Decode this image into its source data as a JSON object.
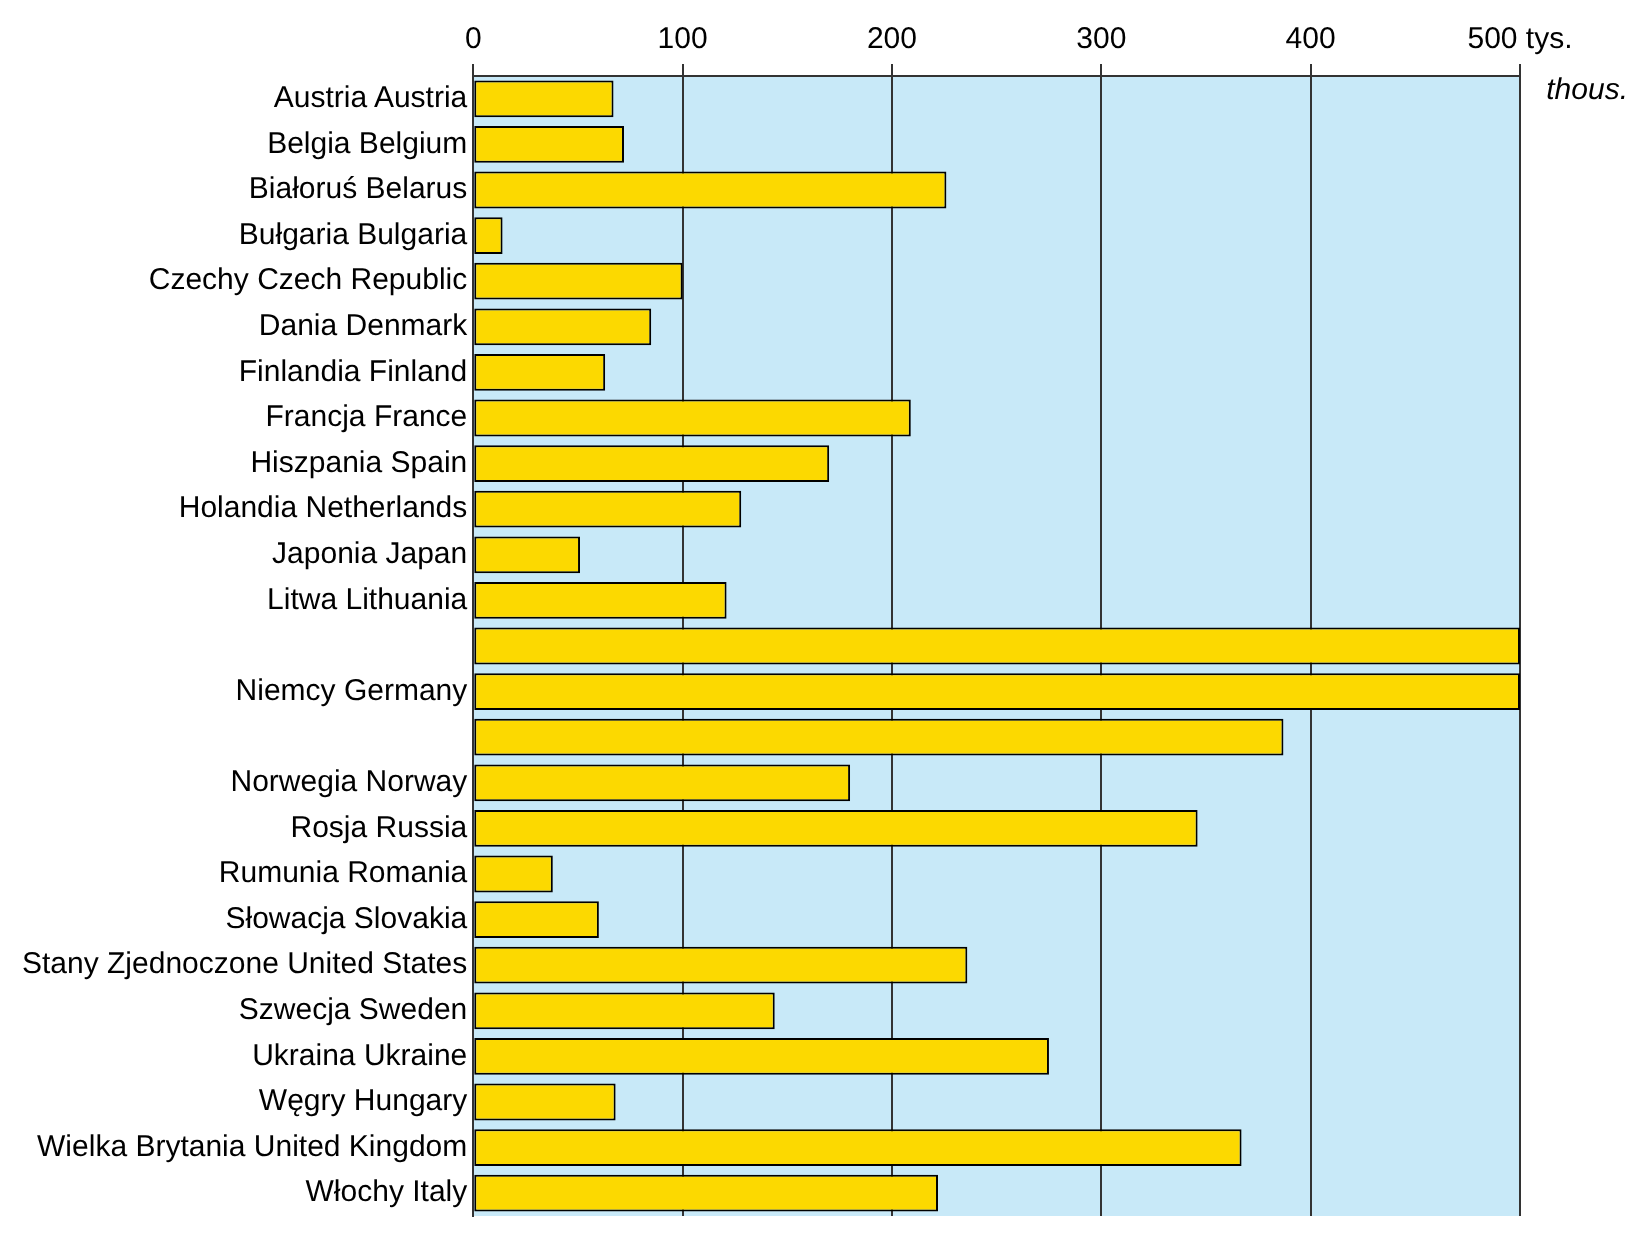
{
  "chart_data": {
    "type": "bar",
    "orientation": "horizontal",
    "categories": [
      "Austria Austria",
      "Belgia Belgium",
      "Białoruś Belarus",
      "Bułgaria Bulgaria",
      "Czechy Czech Republic",
      "Dania Denmark",
      "Finlandia Finland",
      "Francja France",
      "Hiszpania Spain",
      "Holandia Netherlands",
      "Japonia Japan",
      "Litwa Lithuania",
      null,
      "Niemcy Germany",
      null,
      "Norwegia Norway",
      "Rosja Russia",
      "Rumunia Romania",
      "Słowacja Slovakia",
      "Stany Zjednoczone United States",
      "Szwecja Sweden",
      "Ukraina Ukraine",
      "Węgry Hungary",
      "Wielka Brytania United Kingdom",
      "Włochy Italy"
    ],
    "values": [
      67,
      72,
      226,
      14,
      100,
      85,
      63,
      209,
      170,
      128,
      51,
      121,
      500,
      500,
      387,
      180,
      346,
      38,
      60,
      236,
      144,
      275,
      68,
      367,
      222
    ],
    "color": "#fcd900",
    "xlim": [
      0,
      500
    ],
    "xticks": [
      0,
      100,
      200,
      300,
      400,
      {
        "value": 500,
        "label": "500 tys."
      }
    ],
    "xlabel": "thous.",
    "grid": "x"
  }
}
